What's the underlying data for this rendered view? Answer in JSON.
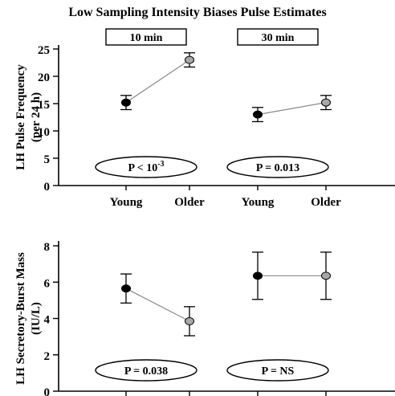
{
  "title": "Low Sampling Intensity Biases Pulse Estimates",
  "colors": {
    "young": "#000000",
    "older": "#a8a8a8",
    "connector": "#888888",
    "axis": "#000000"
  },
  "chart_data": [
    {
      "type": "scatter",
      "ylabel_lines": [
        "LH Pulse Frequency",
        "(per 24 h)"
      ],
      "ylim": [
        0,
        25
      ],
      "yticks": [
        0,
        5,
        10,
        15,
        20,
        25
      ],
      "group_labels": [
        "10 min",
        "30 min"
      ],
      "x_tick_labels": [
        "Young",
        "Older",
        "Young",
        "Older"
      ],
      "p_labels": [
        {
          "base": "P < 10",
          "sup": "-3"
        },
        {
          "base": "P = 0.013",
          "sup": ""
        }
      ],
      "points": [
        {
          "x": "Young",
          "group": "10 min",
          "y": 15.2,
          "err": 1.3
        },
        {
          "x": "Older",
          "group": "10 min",
          "y": 23.0,
          "err": 1.3
        },
        {
          "x": "Young",
          "group": "30 min",
          "y": 13.0,
          "err": 1.3
        },
        {
          "x": "Older",
          "group": "30 min",
          "y": 15.2,
          "err": 1.3
        }
      ]
    },
    {
      "type": "scatter",
      "ylabel_lines": [
        "LH Secretory-Burst Mass",
        "(IU/L)"
      ],
      "ylim": [
        0,
        8
      ],
      "yticks": [
        0,
        2,
        4,
        6,
        8
      ],
      "p_labels": [
        {
          "base": "P = 0.038",
          "sup": ""
        },
        {
          "base": "P = NS",
          "sup": ""
        }
      ],
      "points": [
        {
          "x": "Young",
          "group": "10 min",
          "y": 5.65,
          "err": 0.8
        },
        {
          "x": "Older",
          "group": "10 min",
          "y": 3.85,
          "err": 0.8
        },
        {
          "x": "Young",
          "group": "30 min",
          "y": 6.35,
          "err": 1.3
        },
        {
          "x": "Older",
          "group": "30 min",
          "y": 6.35,
          "err": 1.3
        }
      ]
    }
  ]
}
